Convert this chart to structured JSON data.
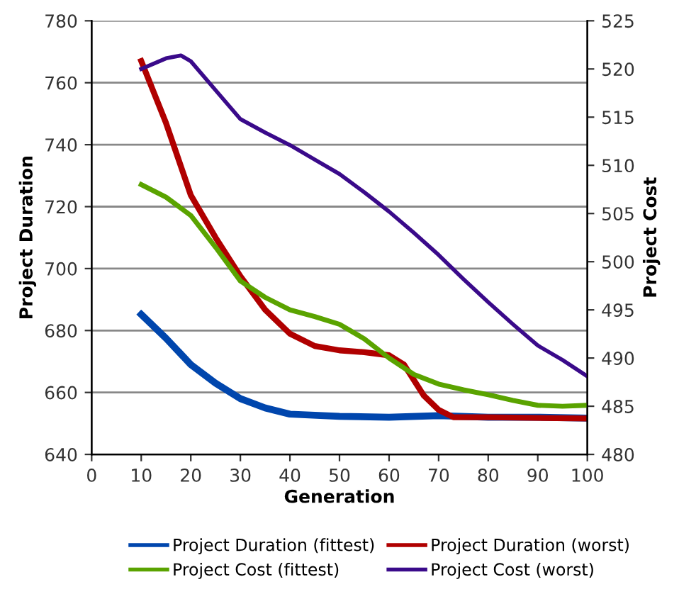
{
  "chart_data": {
    "type": "line",
    "xlabel": "Generation",
    "ylabel": "Project Duration",
    "y2label": "Project Cost",
    "xlim": [
      0,
      100
    ],
    "xticks": [
      0,
      10,
      20,
      30,
      40,
      50,
      60,
      70,
      80,
      90,
      100
    ],
    "ylim": [
      640,
      780
    ],
    "yticks": [
      640,
      660,
      680,
      700,
      720,
      740,
      760,
      780
    ],
    "y2lim": [
      480,
      525
    ],
    "y2ticks": [
      480,
      485,
      490,
      495,
      500,
      505,
      510,
      515,
      520,
      525
    ],
    "grid": "y",
    "legend": "bottom",
    "marker": "none",
    "line_style": "solid",
    "series": [
      {
        "name": "Project Duration (fittest)",
        "color": "#0046ad",
        "x": [
          10,
          15,
          20,
          25,
          30,
          35,
          40,
          50,
          60,
          70,
          80,
          90,
          100
        ],
        "values": [
          685.2,
          677.5,
          669,
          663,
          658,
          655,
          653,
          652.3,
          652,
          652.5,
          652,
          652,
          651.7
        ]
      },
      {
        "name": "Project Duration (worst)",
        "color": "#b00000",
        "x": [
          10,
          15,
          20,
          25,
          30,
          35,
          40,
          45,
          50,
          55,
          60,
          63,
          67,
          70,
          73,
          80,
          100
        ],
        "values": [
          767,
          747,
          723.7,
          710,
          697.5,
          686.7,
          679,
          675,
          673.6,
          673,
          672,
          669,
          659,
          654.4,
          652,
          652,
          651.6
        ]
      },
      {
        "name": "Project Cost (fittest)",
        "color": "#5aa300",
        "axis": "y2",
        "x": [
          10,
          15,
          20,
          25,
          30,
          35,
          40,
          45,
          50,
          55,
          60,
          65,
          70,
          75,
          80,
          85,
          90,
          95,
          100
        ],
        "values": [
          508,
          506.7,
          504.8,
          501.5,
          498,
          496.3,
          495,
          494.3,
          493.5,
          492,
          490,
          488.3,
          487.3,
          486.7,
          486.2,
          485.6,
          485.1,
          485,
          485.1
        ]
      },
      {
        "name": "Project Cost (worst)",
        "color": "#3a0a8a",
        "axis": "y2",
        "x": [
          10,
          15,
          18,
          20,
          25,
          30,
          35,
          40,
          45,
          50,
          55,
          60,
          65,
          70,
          75,
          80,
          85,
          90,
          95,
          100
        ],
        "values": [
          520,
          521.1,
          521.4,
          520.8,
          517.8,
          514.8,
          513.4,
          512.1,
          510.6,
          509.1,
          507.2,
          505.2,
          503,
          500.7,
          498.2,
          495.8,
          493.5,
          491.3,
          489.8,
          488.1
        ]
      }
    ]
  }
}
